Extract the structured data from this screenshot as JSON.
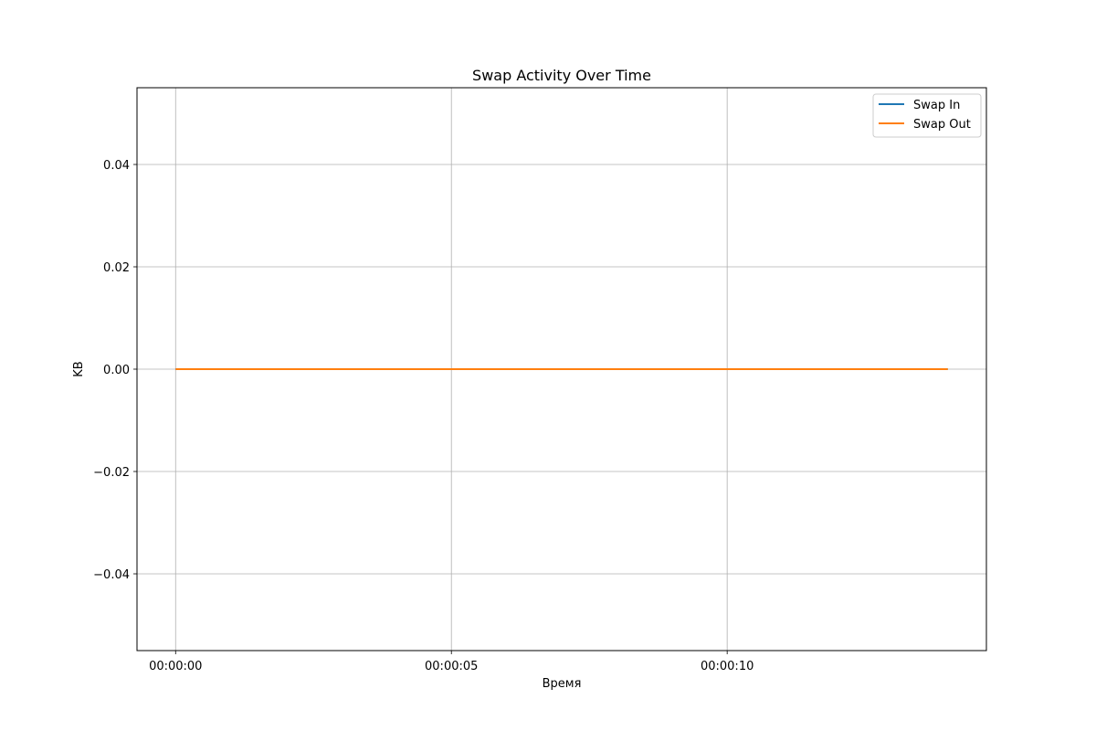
{
  "chart_data": {
    "type": "line",
    "title": "Swap Activity Over Time",
    "xlabel": "Время",
    "ylabel": "KB",
    "x": [
      "00:00:00",
      "00:00:01",
      "00:00:02",
      "00:00:03",
      "00:00:04",
      "00:00:05",
      "00:00:06",
      "00:00:07",
      "00:00:08",
      "00:00:09",
      "00:00:10",
      "00:00:11",
      "00:00:12",
      "00:00:13",
      "00:00:14"
    ],
    "series": [
      {
        "name": "Swap In",
        "values": [
          0,
          0,
          0,
          0,
          0,
          0,
          0,
          0,
          0,
          0,
          0,
          0,
          0,
          0,
          0
        ],
        "color": "#1f77b4"
      },
      {
        "name": "Swap Out",
        "values": [
          0,
          0,
          0,
          0,
          0,
          0,
          0,
          0,
          0,
          0,
          0,
          0,
          0,
          0,
          0
        ],
        "color": "#ff7f0e"
      }
    ],
    "xlim": [
      "-00:00:00.7",
      "00:00:14.7"
    ],
    "ylim": [
      -0.055,
      0.055
    ],
    "x_ticks": [
      "00:00:00",
      "00:00:05",
      "00:00:10"
    ],
    "y_ticks": [
      0.04,
      0.02,
      0.0,
      -0.02,
      -0.04
    ],
    "y_tick_labels": [
      "0.04",
      "0.02",
      "0.00",
      "−0.02",
      "−0.04"
    ],
    "grid": true,
    "legend_position": "top-right"
  }
}
